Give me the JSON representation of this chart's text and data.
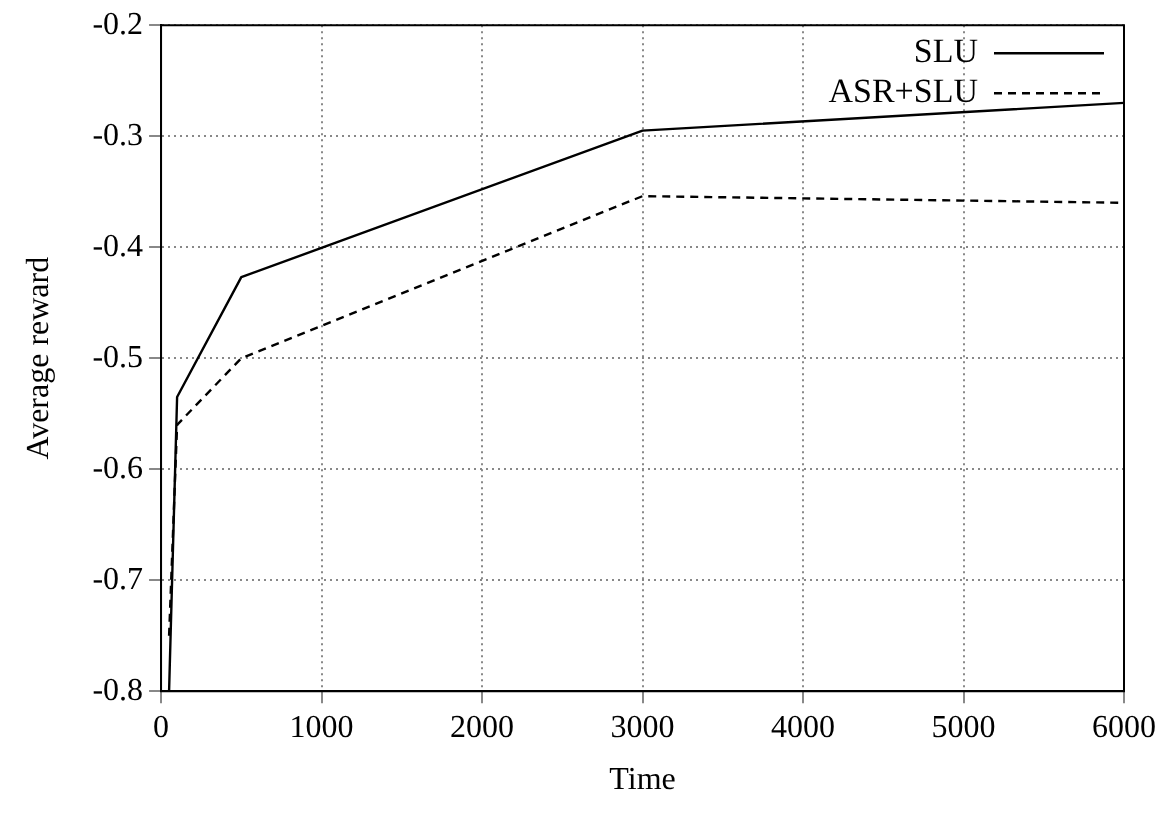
{
  "chart_data": {
    "type": "line",
    "xlabel": "Time",
    "ylabel": "Average reward",
    "xlim": [
      0,
      6000
    ],
    "xticks": [
      0,
      1000,
      2000,
      3000,
      4000,
      5000,
      6000
    ],
    "ylim": [
      -0.8,
      -0.2
    ],
    "yticks": [
      -0.8,
      -0.7,
      -0.6,
      -0.5,
      -0.4,
      -0.3,
      -0.2
    ],
    "grid": true,
    "legend": "top right",
    "marker": "none",
    "series": [
      {
        "name": "SLU",
        "color": "#000000",
        "line_style": "solid",
        "x": [
          50,
          100,
          500,
          3000,
          6000
        ],
        "values": [
          -0.8,
          -0.535,
          -0.427,
          -0.295,
          -0.27
        ]
      },
      {
        "name": "ASR+SLU",
        "color": "#000000",
        "line_style": "dashed",
        "x": [
          50,
          100,
          500,
          3000,
          6000
        ],
        "values": [
          -0.75,
          -0.56,
          -0.5,
          -0.354,
          -0.36
        ]
      }
    ]
  }
}
